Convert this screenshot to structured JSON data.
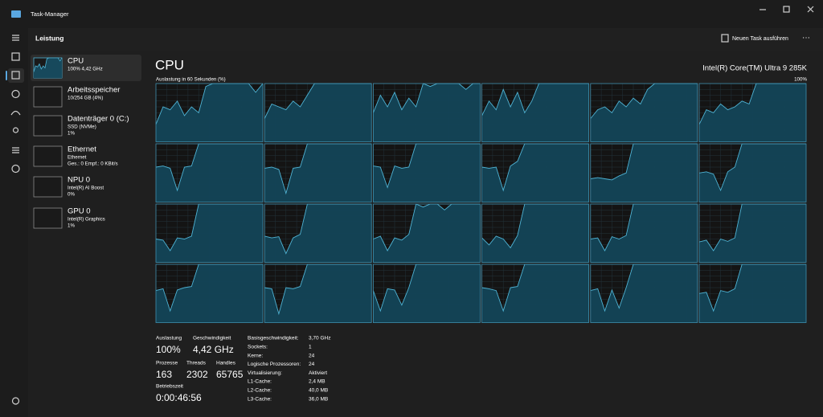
{
  "window": {
    "title": "Task-Manager"
  },
  "header": {
    "title": "Leistung",
    "new_task": "Neuen Task ausführen"
  },
  "sidebar": [
    {
      "name": "CPU",
      "lines": [
        "100% 4,42 GHz"
      ]
    },
    {
      "name": "Arbeitsspeicher",
      "lines": [
        "10/254 GB (4%)"
      ]
    },
    {
      "name": "Datenträger 0 (C:)",
      "lines": [
        "SSD (NVMe)",
        "1%"
      ]
    },
    {
      "name": "Ethernet",
      "lines": [
        "Ethernet",
        "Ges.: 0 Empf.: 0 KBit/s"
      ]
    },
    {
      "name": "NPU 0",
      "lines": [
        "Intel(R) AI Boost",
        "0%"
      ]
    },
    {
      "name": "GPU 0",
      "lines": [
        "Intel(R) Graphics",
        "1%"
      ]
    }
  ],
  "main": {
    "title": "CPU",
    "processor": "Intel(R) Core(TM) Ultra 9 285K",
    "graph_label": "Auslastung in 60 Sekunden (%)",
    "graph_max": "100%",
    "graphs": [
      [
        30,
        60,
        55,
        70,
        45,
        60,
        50,
        95,
        100,
        100,
        100,
        100,
        100,
        100,
        85,
        100
      ],
      [
        40,
        65,
        60,
        55,
        70,
        60,
        80,
        100,
        100,
        100,
        100,
        100,
        100,
        100,
        100,
        100
      ],
      [
        50,
        80,
        60,
        85,
        55,
        75,
        60,
        100,
        95,
        100,
        100,
        100,
        100,
        90,
        100,
        100
      ],
      [
        45,
        70,
        55,
        90,
        60,
        85,
        50,
        70,
        100,
        100,
        100,
        100,
        100,
        100,
        100,
        100
      ],
      [
        40,
        55,
        60,
        50,
        70,
        60,
        75,
        65,
        90,
        100,
        100,
        100,
        100,
        100,
        100,
        100
      ],
      [
        30,
        55,
        50,
        65,
        55,
        60,
        70,
        65,
        100,
        100,
        100,
        100,
        100,
        100,
        100,
        100
      ],
      [
        60,
        62,
        58,
        20,
        60,
        62,
        100,
        100,
        100,
        100,
        100,
        100,
        100,
        100,
        100,
        100
      ],
      [
        58,
        60,
        56,
        15,
        58,
        60,
        100,
        100,
        100,
        100,
        100,
        100,
        100,
        100,
        100,
        100
      ],
      [
        62,
        60,
        25,
        62,
        58,
        60,
        100,
        100,
        100,
        100,
        100,
        100,
        100,
        100,
        100,
        100
      ],
      [
        60,
        58,
        60,
        20,
        62,
        70,
        100,
        100,
        100,
        100,
        100,
        100,
        100,
        100,
        100,
        100
      ],
      [
        40,
        42,
        40,
        38,
        45,
        50,
        100,
        100,
        100,
        100,
        100,
        100,
        100,
        100,
        100,
        100
      ],
      [
        50,
        52,
        48,
        20,
        52,
        60,
        100,
        100,
        100,
        100,
        100,
        100,
        100,
        100,
        100,
        100
      ],
      [
        40,
        38,
        20,
        42,
        40,
        45,
        100,
        100,
        100,
        100,
        100,
        100,
        100,
        100,
        100,
        100
      ],
      [
        45,
        42,
        44,
        15,
        42,
        48,
        100,
        100,
        100,
        100,
        100,
        100,
        100,
        100,
        100,
        100
      ],
      [
        40,
        45,
        20,
        42,
        38,
        48,
        100,
        95,
        100,
        100,
        90,
        100,
        100,
        100,
        100,
        100
      ],
      [
        42,
        30,
        45,
        40,
        25,
        46,
        100,
        100,
        100,
        100,
        100,
        100,
        100,
        100,
        100,
        100
      ],
      [
        40,
        42,
        20,
        44,
        40,
        46,
        100,
        100,
        100,
        100,
        100,
        100,
        100,
        100,
        100,
        100
      ],
      [
        35,
        38,
        20,
        40,
        36,
        42,
        100,
        100,
        100,
        100,
        100,
        100,
        100,
        100,
        100,
        100
      ],
      [
        55,
        58,
        20,
        56,
        60,
        62,
        100,
        100,
        100,
        100,
        100,
        100,
        100,
        100,
        100,
        100
      ],
      [
        60,
        58,
        15,
        60,
        58,
        62,
        100,
        100,
        100,
        100,
        100,
        100,
        100,
        100,
        100,
        100
      ],
      [
        55,
        20,
        58,
        56,
        30,
        60,
        100,
        100,
        100,
        100,
        100,
        100,
        100,
        100,
        100,
        100
      ],
      [
        60,
        58,
        55,
        20,
        60,
        62,
        100,
        100,
        100,
        100,
        100,
        100,
        100,
        100,
        100,
        100
      ],
      [
        55,
        58,
        20,
        56,
        25,
        60,
        100,
        100,
        100,
        100,
        100,
        100,
        100,
        100,
        100,
        100
      ],
      [
        50,
        52,
        20,
        55,
        52,
        58,
        100,
        100,
        100,
        100,
        100,
        100,
        100,
        100,
        100,
        100
      ]
    ],
    "stats": [
      {
        "label": "Auslastung",
        "value": "100%"
      },
      {
        "label": "Geschwindigkeit",
        "value": "4,42 GHz"
      },
      {
        "label": "Prozesse",
        "value": "163"
      },
      {
        "label": "Threads",
        "value": "2302"
      },
      {
        "label": "Handles",
        "value": "65765"
      },
      {
        "label": "Betriebszeit",
        "value": "0:00:46:56"
      }
    ],
    "details": [
      {
        "label": "Basisgeschwindigkeit:",
        "value": "3,70 GHz"
      },
      {
        "label": "Sockets:",
        "value": "1"
      },
      {
        "label": "Kerne:",
        "value": "24"
      },
      {
        "label": "Logische Prozessoren:",
        "value": "24"
      },
      {
        "label": "Virtualisierung:",
        "value": "Aktiviert"
      },
      {
        "label": "L1-Cache:",
        "value": "2,4 MB"
      },
      {
        "label": "L2-Cache:",
        "value": "40,0 MB"
      },
      {
        "label": "L3-Cache:",
        "value": "36,0 MB"
      }
    ]
  }
}
